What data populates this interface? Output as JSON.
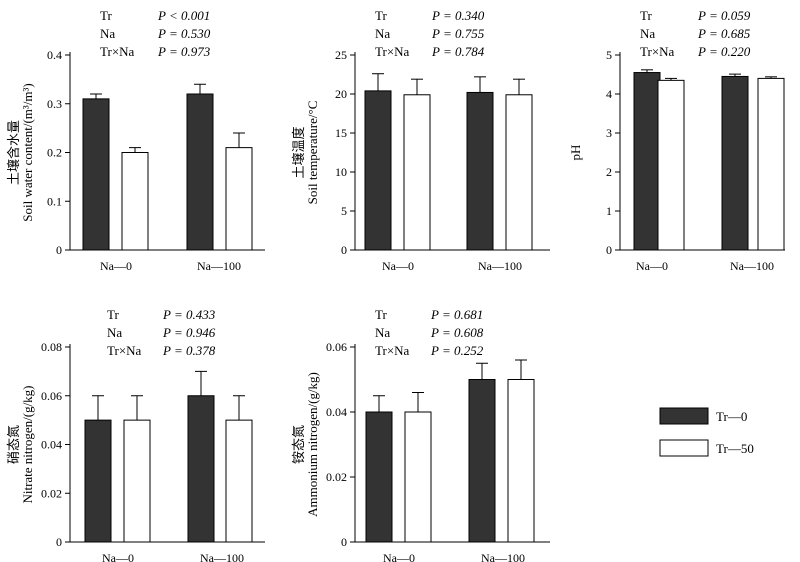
{
  "legend": [
    {
      "label": "Tr—0",
      "color": "#333333"
    },
    {
      "label": "Tr—50",
      "color": "#ffffff"
    }
  ],
  "chart_data": [
    {
      "type": "bar",
      "categories": [
        "Na—0",
        "Na—100"
      ],
      "ylabel_cn": "土壤含水量",
      "ylabel": "Soil water content/(m³/m³)",
      "ylim": [
        0,
        0.4
      ],
      "yticks": [
        "0",
        "0.1",
        "0.2",
        "0.3",
        "0.4"
      ],
      "series": [
        {
          "name": "Tr—0",
          "values": [
            0.31,
            0.32
          ],
          "errors": [
            0.01,
            0.02
          ]
        },
        {
          "name": "Tr—50",
          "values": [
            0.2,
            0.21
          ],
          "errors": [
            0.01,
            0.03
          ]
        }
      ],
      "stats": [
        {
          "term": "Tr",
          "p": "P < 0.001"
        },
        {
          "term": "Na",
          "p": "P = 0.530"
        },
        {
          "term": "Tr×Na",
          "p": "P = 0.973"
        }
      ]
    },
    {
      "type": "bar",
      "categories": [
        "Na—0",
        "Na—100"
      ],
      "ylabel_cn": "土壤温度",
      "ylabel": "Soil temperature/°C",
      "ylim": [
        0,
        25
      ],
      "yticks": [
        "0",
        "5",
        "10",
        "15",
        "20",
        "25"
      ],
      "series": [
        {
          "name": "Tr—0",
          "values": [
            20.4,
            20.2
          ],
          "errors": [
            2.2,
            2.0
          ]
        },
        {
          "name": "Tr—50",
          "values": [
            19.9,
            19.9
          ],
          "errors": [
            2.0,
            2.0
          ]
        }
      ],
      "stats": [
        {
          "term": "Tr",
          "p": "P = 0.340"
        },
        {
          "term": "Na",
          "p": "P = 0.755"
        },
        {
          "term": "Tr×Na",
          "p": "P = 0.784"
        }
      ]
    },
    {
      "type": "bar",
      "categories": [
        "Na—0",
        "Na—100"
      ],
      "ylabel_cn": "",
      "ylabel": "pH",
      "ylim": [
        0,
        5
      ],
      "yticks": [
        "0",
        "1",
        "2",
        "3",
        "4",
        "5"
      ],
      "series": [
        {
          "name": "Tr—0",
          "values": [
            4.55,
            4.45
          ],
          "errors": [
            0.07,
            0.06
          ]
        },
        {
          "name": "Tr—50",
          "values": [
            4.35,
            4.4
          ],
          "errors": [
            0.05,
            0.04
          ]
        }
      ],
      "stats": [
        {
          "term": "Tr",
          "p": "P = 0.059"
        },
        {
          "term": "Na",
          "p": "P = 0.685"
        },
        {
          "term": "Tr×Na",
          "p": "P = 0.220"
        }
      ]
    },
    {
      "type": "bar",
      "categories": [
        "Na—0",
        "Na—100"
      ],
      "ylabel_cn": "硝态氮",
      "ylabel": "Nitrate nitrogen/(g/kg)",
      "ylim": [
        0,
        0.08
      ],
      "yticks": [
        "0",
        "0.02",
        "0.04",
        "0.06",
        "0.08"
      ],
      "series": [
        {
          "name": "Tr—0",
          "values": [
            0.05,
            0.06
          ],
          "errors": [
            0.01,
            0.01
          ]
        },
        {
          "name": "Tr—50",
          "values": [
            0.05,
            0.05
          ],
          "errors": [
            0.01,
            0.01
          ]
        }
      ],
      "stats": [
        {
          "term": "Tr",
          "p": "P = 0.433"
        },
        {
          "term": "Na",
          "p": "P = 0.946"
        },
        {
          "term": "Tr×Na",
          "p": "P = 0.378"
        }
      ]
    },
    {
      "type": "bar",
      "categories": [
        "Na—0",
        "Na—100"
      ],
      "ylabel_cn": "铵态氮",
      "ylabel": "Ammonium nitrogen/(g/kg)",
      "ylim": [
        0,
        0.06
      ],
      "yticks": [
        "0",
        "0.02",
        "0.04",
        "0.06"
      ],
      "series": [
        {
          "name": "Tr—0",
          "values": [
            0.04,
            0.05
          ],
          "errors": [
            0.005,
            0.005
          ]
        },
        {
          "name": "Tr—50",
          "values": [
            0.04,
            0.05
          ],
          "errors": [
            0.006,
            0.006
          ]
        }
      ],
      "stats": [
        {
          "term": "Tr",
          "p": "P = 0.681"
        },
        {
          "term": "Na",
          "p": "P = 0.608"
        },
        {
          "term": "Tr×Na",
          "p": "P = 0.252"
        }
      ]
    }
  ]
}
